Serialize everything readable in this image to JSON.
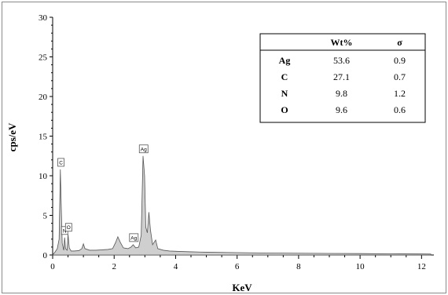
{
  "chart_data": {
    "type": "area",
    "xlabel": "KeV",
    "ylabel": "cps/eV",
    "xlim": [
      0,
      12.4
    ],
    "ylim": [
      0,
      30
    ],
    "x_ticks": [
      "0",
      "2",
      "4",
      "6",
      "8",
      "10",
      "12"
    ],
    "y_ticks": [
      "0",
      "5",
      "10",
      "15",
      "20",
      "25",
      "30"
    ],
    "spectrum": [
      [
        0.0,
        0.0
      ],
      [
        0.08,
        0.4
      ],
      [
        0.15,
        0.8
      ],
      [
        0.21,
        2.0
      ],
      [
        0.25,
        10.8
      ],
      [
        0.28,
        6.0
      ],
      [
        0.31,
        1.5
      ],
      [
        0.36,
        0.6
      ],
      [
        0.39,
        2.2
      ],
      [
        0.42,
        0.8
      ],
      [
        0.47,
        0.6
      ],
      [
        0.5,
        2.6
      ],
      [
        0.54,
        0.9
      ],
      [
        0.6,
        0.5
      ],
      [
        0.7,
        0.5
      ],
      [
        0.85,
        0.55
      ],
      [
        0.95,
        0.8
      ],
      [
        1.0,
        1.4
      ],
      [
        1.05,
        0.8
      ],
      [
        1.2,
        0.6
      ],
      [
        1.4,
        0.6
      ],
      [
        1.6,
        0.65
      ],
      [
        1.8,
        0.7
      ],
      [
        1.95,
        0.8
      ],
      [
        2.05,
        1.6
      ],
      [
        2.12,
        2.3
      ],
      [
        2.2,
        1.6
      ],
      [
        2.3,
        0.9
      ],
      [
        2.45,
        0.8
      ],
      [
        2.55,
        1.0
      ],
      [
        2.62,
        1.3
      ],
      [
        2.7,
        0.9
      ],
      [
        2.8,
        1.0
      ],
      [
        2.88,
        2.5
      ],
      [
        2.94,
        12.5
      ],
      [
        2.99,
        10.0
      ],
      [
        3.03,
        3.5
      ],
      [
        3.08,
        2.8
      ],
      [
        3.13,
        5.4
      ],
      [
        3.18,
        3.2
      ],
      [
        3.25,
        1.3
      ],
      [
        3.35,
        1.9
      ],
      [
        3.42,
        0.8
      ],
      [
        3.6,
        0.6
      ],
      [
        3.8,
        0.5
      ],
      [
        4.1,
        0.45
      ],
      [
        4.5,
        0.4
      ],
      [
        5.0,
        0.35
      ],
      [
        6.0,
        0.3
      ],
      [
        7.0,
        0.25
      ],
      [
        8.0,
        0.22
      ],
      [
        9.0,
        0.2
      ],
      [
        10.0,
        0.18
      ],
      [
        11.0,
        0.15
      ],
      [
        12.0,
        0.13
      ],
      [
        12.3,
        0.12
      ]
    ],
    "peak_labels": [
      {
        "text": "C",
        "x": 0.27,
        "y": 10.8
      },
      {
        "text": "N",
        "x": 0.39,
        "y": 2.2
      },
      {
        "text": "O",
        "x": 0.52,
        "y": 2.6
      },
      {
        "text": "Ag",
        "x": 2.64,
        "y": 1.3
      },
      {
        "text": "Ag",
        "x": 2.96,
        "y": 12.5
      }
    ],
    "table": {
      "headers": [
        "",
        "Wt%",
        "σ"
      ],
      "rows": [
        [
          "Ag",
          "53.6",
          "0.9"
        ],
        [
          "C",
          "27.1",
          "0.7"
        ],
        [
          "N",
          "9.8",
          "1.2"
        ],
        [
          "O",
          "9.6",
          "0.6"
        ]
      ]
    }
  }
}
